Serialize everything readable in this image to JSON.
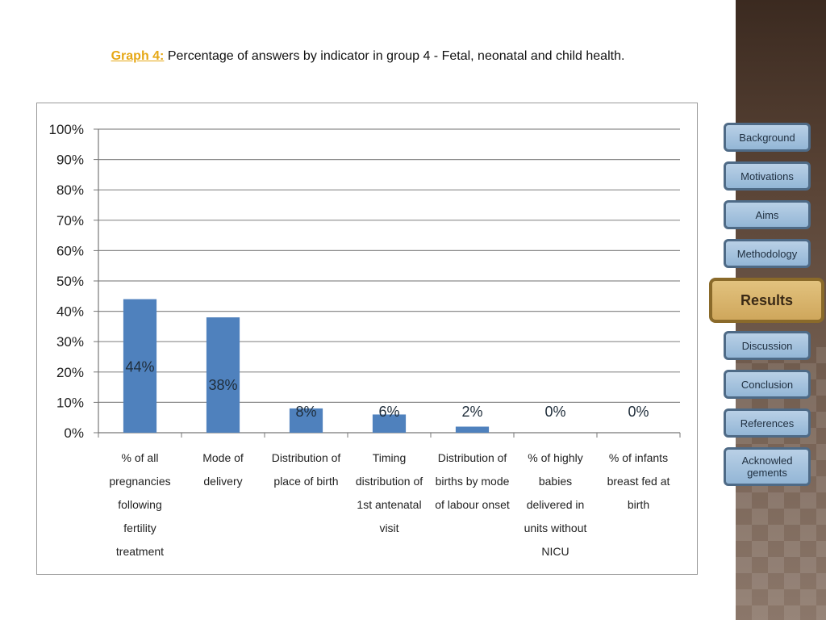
{
  "slide": {
    "title_label": "Graph 4:",
    "title_text": " Percentage of answers by indicator in group 4 - Fetal, neonatal and child health."
  },
  "nav": {
    "items": [
      {
        "label": "Background"
      },
      {
        "label": "Motivations"
      },
      {
        "label": "Aims"
      },
      {
        "label": "Methodology"
      },
      {
        "label": "Results",
        "active": true
      },
      {
        "label": "Discussion"
      },
      {
        "label": "Conclusion"
      },
      {
        "label": "References"
      },
      {
        "label": "Acknowledgements"
      }
    ]
  },
  "colors": {
    "bar": "#4f81bd",
    "gridline": "#8c8c8c",
    "title_label": "#e6a817",
    "nav_button": "#a9c5e0",
    "nav_active": "#d9b56d"
  },
  "chart_data": {
    "type": "bar",
    "categories": [
      "% of all pregnancies following fertility treatment",
      "Mode of delivery",
      "Distribution of place of birth",
      "Timing distribution of 1st antenatal visit",
      "Distribution of births by mode of labour onset",
      "% of highly babies delivered in units without NICU",
      "% of infants breast fed at birth"
    ],
    "category_lines": [
      [
        "% of all",
        "pregnancies",
        "following",
        "fertility",
        "treatment"
      ],
      [
        "Mode of",
        "delivery"
      ],
      [
        "Distribution of",
        "place of birth"
      ],
      [
        "Timing",
        "distribution of",
        "1st antenatal",
        "visit"
      ],
      [
        "Distribution of",
        "births by mode",
        "of labour onset"
      ],
      [
        "% of highly",
        "babies",
        "delivered in",
        "units without",
        "NICU"
      ],
      [
        "% of infants",
        "breast fed at",
        "birth"
      ]
    ],
    "values": [
      44,
      38,
      8,
      6,
      2,
      0,
      0
    ],
    "data_labels": [
      "44%",
      "38%",
      "8%",
      "6%",
      "2%",
      "0%",
      "0%"
    ],
    "yticks": [
      "0%",
      "10%",
      "20%",
      "30%",
      "40%",
      "50%",
      "60%",
      "70%",
      "80%",
      "90%",
      "100%"
    ],
    "ylim": [
      0,
      100
    ],
    "grid": true,
    "legend": "none"
  }
}
